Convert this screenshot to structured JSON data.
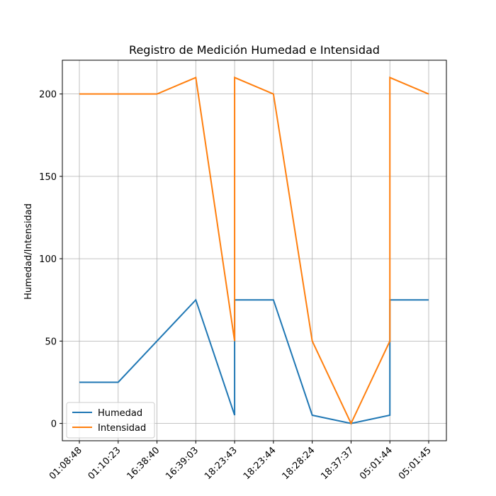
{
  "chart_data": {
    "type": "line",
    "title": "Registro de Medición Humedad e Intensidad",
    "ylabel": "Humedad/Intensidad",
    "categories": [
      "01:08:48",
      "01:10:23",
      "16:38:40",
      "16:39:03",
      "18:23:43",
      "18:23:44",
      "18:28:24",
      "18:37:37",
      "05:01:44",
      "05:01:45"
    ],
    "x": [
      "01:08:48",
      "01:10:23",
      "16:38:40",
      "16:39:03",
      "18:23:43",
      "18:23:43",
      "18:23:44",
      "18:28:24",
      "18:37:37",
      "05:01:44",
      "05:01:44",
      "05:01:45"
    ],
    "series": [
      {
        "name": "Humedad",
        "color": "#1f77b4",
        "values": [
          25,
          25,
          50,
          75,
          5,
          75,
          75,
          5,
          0,
          5,
          75,
          75
        ]
      },
      {
        "name": "Intensidad",
        "color": "#ff7f0e",
        "values": [
          200,
          200,
          200,
          210,
          50,
          210,
          200,
          50,
          0,
          50,
          210,
          200
        ]
      }
    ],
    "ylim": [
      -10.5,
      220.5
    ],
    "yticks": [
      0,
      50,
      100,
      150,
      200
    ],
    "grid": true,
    "legend": "lower left"
  }
}
